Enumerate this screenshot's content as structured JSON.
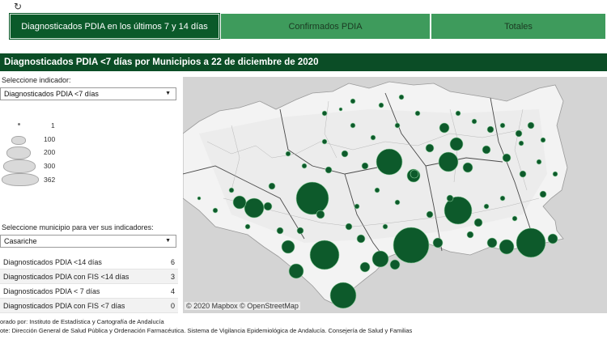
{
  "toolbar": {
    "refresh_icon": "↻"
  },
  "tabs": [
    {
      "label": "Diagnosticados PDIA en los últimos 7 y 14 días",
      "active": true
    },
    {
      "label": "Confirmados PDIA",
      "active": false
    },
    {
      "label": "Totales",
      "active": false
    }
  ],
  "section_title": "Diagnosticados PDIA <7 días por Municipios a 22 de diciembre de 2020",
  "indicator": {
    "label": "Seleccione indicador:",
    "value": "Diagnosticados PDIA <7 días"
  },
  "legend": [
    "1",
    "100",
    "200",
    "300",
    "362"
  ],
  "municipality": {
    "label": "Seleccione municipio para ver sus indicadores:",
    "value": "Casariche"
  },
  "indicators_table": [
    {
      "name": "Diagnosticados PDIA <14 días",
      "value": "6"
    },
    {
      "name": "Diagnosticados PDIA con FIS <14 días",
      "value": "3"
    },
    {
      "name": "Diagnosticados PDIA < 7 días",
      "value": "4"
    },
    {
      "name": "Diagnosticados PDIA con FIS <7 días",
      "value": "0"
    }
  ],
  "map": {
    "attribution": "© 2020 Mapbox © OpenStreetMap",
    "land_color": "#f3f3f3",
    "sea_color": "#d4d4d4",
    "bubble_color": "#0d5a2b"
  },
  "footer": {
    "line1": "orado por: Instituto de Estadística y Cartografía de Andalucía",
    "line2": "ote: Dirección General de Salud Pública y Ordenación Farmacéutica. Sistema de Vigilancia Epidemiológica de Andalucía. Consejería de Salud y Familias"
  }
}
